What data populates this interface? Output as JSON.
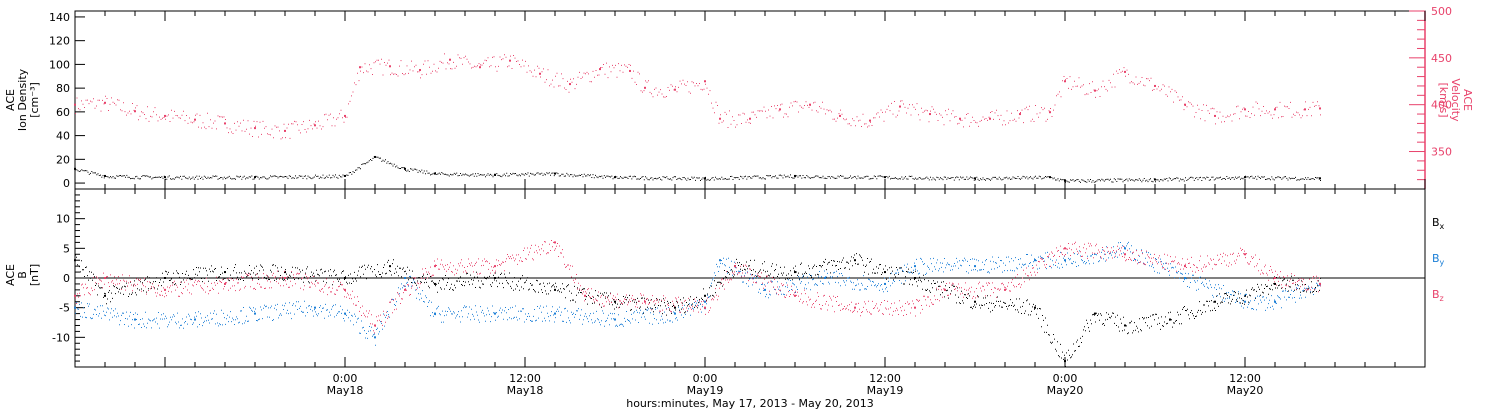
{
  "chart_data": [
    {
      "type": "scatter",
      "x_range": [
        "2013-05-17T06:00",
        "2013-05-21T00:00"
      ],
      "left_axis": {
        "label_lines": [
          "ACE",
          "Ion Density",
          "[cm⁻³]"
        ],
        "ylim": [
          -5,
          145
        ],
        "ticks": [
          0,
          20,
          40,
          60,
          80,
          100,
          120,
          140
        ],
        "color": "#000000"
      },
      "right_axis": {
        "label_lines": [
          "ACE",
          "Velocity",
          "[km/s]"
        ],
        "ylim": [
          310,
          500
        ],
        "ticks": [
          350,
          400,
          450,
          500
        ],
        "color": "#e8426b"
      },
      "series": [
        {
          "axis": "right",
          "color": "#e8426b",
          "points": [
            [
              "2013-05-17T06:00",
              400
            ],
            [
              "2013-05-17T08:00",
              402
            ],
            [
              "2013-05-17T10:00",
              393
            ],
            [
              "2013-05-17T12:00",
              388
            ],
            [
              "2013-05-17T14:00",
              384
            ],
            [
              "2013-05-17T16:00",
              380
            ],
            [
              "2013-05-17T18:00",
              375
            ],
            [
              "2013-05-17T20:00",
              372
            ],
            [
              "2013-05-17T22:00",
              378
            ],
            [
              "2013-05-18T00:00",
              388
            ],
            [
              "2013-05-18T01:00",
              440
            ],
            [
              "2013-05-18T03:00",
              441
            ],
            [
              "2013-05-18T05:00",
              437
            ],
            [
              "2013-05-18T07:00",
              448
            ],
            [
              "2013-05-18T09:00",
              440
            ],
            [
              "2013-05-18T11:00",
              447
            ],
            [
              "2013-05-18T13:00",
              433
            ],
            [
              "2013-05-18T15:00",
              422
            ],
            [
              "2013-05-18T17:00",
              438
            ],
            [
              "2013-05-18T19:00",
              436
            ],
            [
              "2013-05-18T20:00",
              418
            ],
            [
              "2013-05-18T22:00",
              416
            ],
            [
              "2013-05-19T00:00",
              425
            ],
            [
              "2013-05-19T01:00",
              385
            ],
            [
              "2013-05-19T03:00",
              385
            ],
            [
              "2013-05-19T05:00",
              395
            ],
            [
              "2013-05-19T07:00",
              400
            ],
            [
              "2013-05-19T09:00",
              388
            ],
            [
              "2013-05-19T11:00",
              383
            ],
            [
              "2013-05-19T13:00",
              398
            ],
            [
              "2013-05-19T15:00",
              390
            ],
            [
              "2013-05-19T17:00",
              385
            ],
            [
              "2013-05-19T19:00",
              385
            ],
            [
              "2013-05-19T21:00",
              390
            ],
            [
              "2013-05-19T23:00",
              392
            ],
            [
              "2013-05-20T00:00",
              425
            ],
            [
              "2013-05-20T02:00",
              415
            ],
            [
              "2013-05-20T04:00",
              435
            ],
            [
              "2013-05-20T06:00",
              420
            ],
            [
              "2013-05-20T08:00",
              400
            ],
            [
              "2013-05-20T10:00",
              388
            ],
            [
              "2013-05-20T12:00",
              395
            ],
            [
              "2013-05-20T14:00",
              395
            ],
            [
              "2013-05-20T16:00",
              395
            ],
            [
              "2013-05-20T17:00",
              396
            ]
          ]
        },
        {
          "axis": "left",
          "color": "#000000",
          "points": [
            [
              "2013-05-17T06:00",
              12
            ],
            [
              "2013-05-17T08:00",
              6
            ],
            [
              "2013-05-17T12:00",
              5
            ],
            [
              "2013-05-17T18:00",
              5
            ],
            [
              "2013-05-18T00:00",
              6
            ],
            [
              "2013-05-18T02:00",
              22
            ],
            [
              "2013-05-18T04:00",
              12
            ],
            [
              "2013-05-18T06:00",
              8
            ],
            [
              "2013-05-18T10:00",
              7
            ],
            [
              "2013-05-18T14:00",
              8
            ],
            [
              "2013-05-18T18:00",
              5
            ],
            [
              "2013-05-19T00:00",
              4
            ],
            [
              "2013-05-19T06:00",
              6
            ],
            [
              "2013-05-19T12:00",
              5
            ],
            [
              "2013-05-19T18:00",
              4
            ],
            [
              "2013-05-19T23:00",
              5
            ],
            [
              "2013-05-20T00:00",
              2
            ],
            [
              "2013-05-20T06:00",
              3
            ],
            [
              "2013-05-20T12:00",
              5
            ],
            [
              "2013-05-20T17:00",
              4
            ]
          ]
        }
      ]
    },
    {
      "type": "scatter",
      "x_range": [
        "2013-05-17T06:00",
        "2013-05-21T00:00"
      ],
      "left_axis": {
        "label_lines": [
          "ACE",
          "B",
          "[nT]"
        ],
        "ylim": [
          -15,
          15
        ],
        "ticks": [
          -10,
          -5,
          0,
          5,
          10
        ]
      },
      "legend": [
        "Bx",
        "By",
        "Bz"
      ],
      "series": [
        {
          "name": "Bx",
          "color": "#000000",
          "points": [
            [
              "2013-05-17T06:00",
              3
            ],
            [
              "2013-05-17T08:00",
              -3
            ],
            [
              "2013-05-17T12:00",
              0
            ],
            [
              "2013-05-17T16:00",
              1
            ],
            [
              "2013-05-17T20:00",
              1
            ],
            [
              "2013-05-18T00:00",
              0
            ],
            [
              "2013-05-18T03:00",
              2
            ],
            [
              "2013-05-18T06:00",
              -1
            ],
            [
              "2013-05-18T10:00",
              0
            ],
            [
              "2013-05-18T14:00",
              -2
            ],
            [
              "2013-05-18T18:00",
              -4
            ],
            [
              "2013-05-18T22:00",
              -5
            ],
            [
              "2013-05-19T00:00",
              -3
            ],
            [
              "2013-05-19T02:00",
              2
            ],
            [
              "2013-05-19T06:00",
              1
            ],
            [
              "2013-05-19T10:00",
              3
            ],
            [
              "2013-05-19T12:00",
              1
            ],
            [
              "2013-05-19T14:00",
              0
            ],
            [
              "2013-05-19T18:00",
              -4
            ],
            [
              "2013-05-19T22:00",
              -5
            ],
            [
              "2013-05-20T00:00",
              -14
            ],
            [
              "2013-05-20T02:00",
              -6
            ],
            [
              "2013-05-20T04:00",
              -8
            ],
            [
              "2013-05-20T07:00",
              -7
            ],
            [
              "2013-05-20T10:00",
              -4
            ],
            [
              "2013-05-20T12:00",
              -3
            ],
            [
              "2013-05-20T14:00",
              -1
            ],
            [
              "2013-05-20T17:00",
              -1
            ]
          ]
        },
        {
          "name": "By",
          "color": "#1c7fd6",
          "points": [
            [
              "2013-05-17T06:00",
              -5
            ],
            [
              "2013-05-17T10:00",
              -7
            ],
            [
              "2013-05-17T14:00",
              -7
            ],
            [
              "2013-05-17T18:00",
              -6
            ],
            [
              "2013-05-17T22:00",
              -5
            ],
            [
              "2013-05-18T00:00",
              -6
            ],
            [
              "2013-05-18T02:00",
              -10
            ],
            [
              "2013-05-18T04:00",
              0
            ],
            [
              "2013-05-18T06:00",
              -6
            ],
            [
              "2013-05-18T10:00",
              -6
            ],
            [
              "2013-05-18T14:00",
              -6
            ],
            [
              "2013-05-18T18:00",
              -7
            ],
            [
              "2013-05-18T22:00",
              -6
            ],
            [
              "2013-05-19T00:00",
              -4
            ],
            [
              "2013-05-19T01:00",
              3
            ],
            [
              "2013-05-19T04:00",
              -2
            ],
            [
              "2013-05-19T08:00",
              0
            ],
            [
              "2013-05-19T12:00",
              -1
            ],
            [
              "2013-05-19T14:00",
              2
            ],
            [
              "2013-05-19T18:00",
              2
            ],
            [
              "2013-05-19T22:00",
              3
            ],
            [
              "2013-05-20T00:00",
              3
            ],
            [
              "2013-05-20T04:00",
              5
            ],
            [
              "2013-05-20T08:00",
              0
            ],
            [
              "2013-05-20T12:00",
              -4
            ],
            [
              "2013-05-20T14:00",
              -4
            ],
            [
              "2013-05-20T17:00",
              -1
            ]
          ]
        },
        {
          "name": "Bz",
          "color": "#e8426b",
          "points": [
            [
              "2013-05-17T06:00",
              -3
            ],
            [
              "2013-05-17T08:00",
              0
            ],
            [
              "2013-05-17T12:00",
              -2
            ],
            [
              "2013-05-17T16:00",
              -1
            ],
            [
              "2013-05-17T20:00",
              0
            ],
            [
              "2013-05-18T00:00",
              -2
            ],
            [
              "2013-05-18T02:00",
              -8
            ],
            [
              "2013-05-18T04:00",
              -2
            ],
            [
              "2013-05-18T06:00",
              2
            ],
            [
              "2013-05-18T10:00",
              2
            ],
            [
              "2013-05-18T14:00",
              6
            ],
            [
              "2013-05-18T16:00",
              -3
            ],
            [
              "2013-05-18T20:00",
              -4
            ],
            [
              "2013-05-19T00:00",
              -5
            ],
            [
              "2013-05-19T02:00",
              2
            ],
            [
              "2013-05-19T06:00",
              -3
            ],
            [
              "2013-05-19T10:00",
              -5
            ],
            [
              "2013-05-19T14:00",
              -5
            ],
            [
              "2013-05-19T16:00",
              -2
            ],
            [
              "2013-05-19T20:00",
              -2
            ],
            [
              "2013-05-20T00:00",
              5
            ],
            [
              "2013-05-20T04:00",
              4
            ],
            [
              "2013-05-20T08:00",
              2
            ],
            [
              "2013-05-20T12:00",
              4
            ],
            [
              "2013-05-20T14:00",
              0
            ],
            [
              "2013-05-20T17:00",
              -1
            ]
          ]
        }
      ]
    }
  ],
  "x_axis": {
    "tick_times": [
      "2013-05-18T00:00",
      "2013-05-18T12:00",
      "2013-05-19T00:00",
      "2013-05-19T12:00",
      "2013-05-20T00:00",
      "2013-05-20T12:00"
    ],
    "tick_labels": [
      [
        "0:00",
        "May18"
      ],
      [
        "12:00",
        "May18"
      ],
      [
        "0:00",
        "May19"
      ],
      [
        "12:00",
        "May19"
      ],
      [
        "0:00",
        "May20"
      ],
      [
        "12:00",
        "May20"
      ]
    ],
    "title": "hours:minutes, May 17, 2013 - May 20, 2013"
  }
}
